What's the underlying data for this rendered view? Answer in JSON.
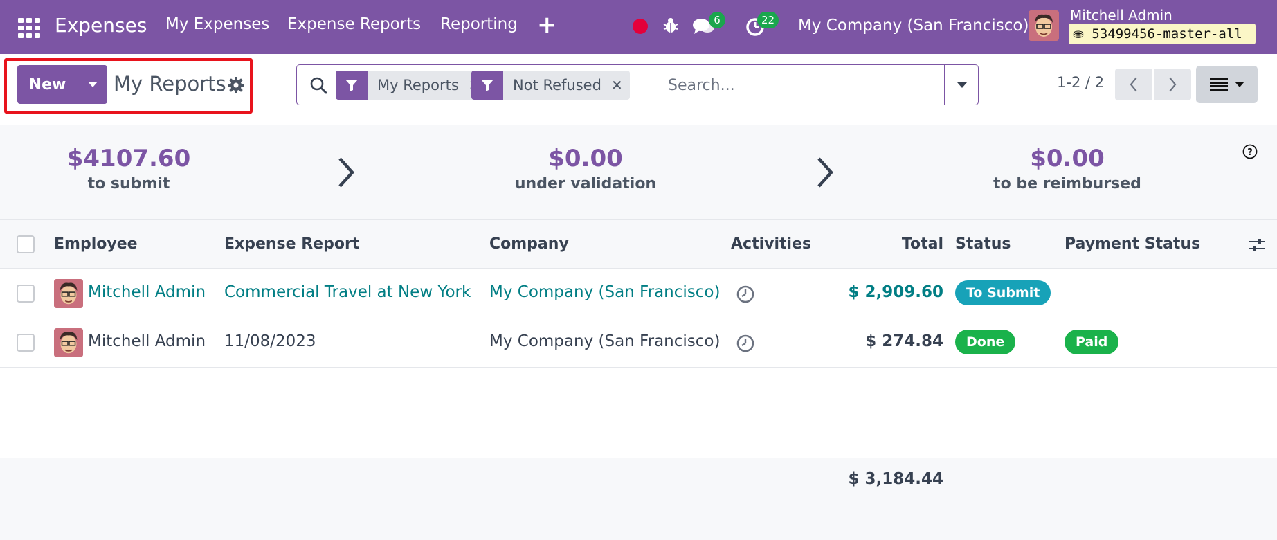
{
  "navbar": {
    "app_name": "Expenses",
    "menu": [
      "My Expenses",
      "Expense Reports",
      "Reporting"
    ],
    "messages_count": "6",
    "activities_count": "22",
    "company": "My Company (San Francisco)",
    "user_name": "Mitchell Admin",
    "db_name": "53499456-master-all",
    "colors": {
      "brand": "#7c55a4",
      "record": "#e4003a",
      "badge": "#1aa64d"
    }
  },
  "control_panel": {
    "new_label": "New",
    "breadcrumb": "My Reports",
    "facets": [
      {
        "icon": "filter-icon",
        "label": "My Reports"
      },
      {
        "icon": "filter-icon",
        "label": "Not Refused"
      }
    ],
    "search_placeholder": "Search...",
    "pager": "1-2 / 2"
  },
  "summary": [
    {
      "amount": "$4107.60",
      "label": "to submit"
    },
    {
      "amount": "$0.00",
      "label": "under validation"
    },
    {
      "amount": "$0.00",
      "label": "to be reimbursed"
    }
  ],
  "table": {
    "columns": [
      "Employee",
      "Expense Report",
      "Company",
      "Activities",
      "Total",
      "Status",
      "Payment Status"
    ],
    "rows": [
      {
        "employee": "Mitchell Admin",
        "report": "Commercial Travel at New York",
        "company": "My Company (San Francisco)",
        "total": "$ 2,909.60",
        "status": "To Submit",
        "payment_status": ""
      },
      {
        "employee": "Mitchell Admin",
        "report": "11/08/2023",
        "company": "My Company (San Francisco)",
        "total": "$ 274.84",
        "status": "Done",
        "payment_status": "Paid"
      }
    ],
    "sum_total": "$ 3,184.44",
    "status_colors": {
      "To Submit": "#17a2b8",
      "Done": "#1ab24b",
      "Paid": "#1ab24b"
    }
  }
}
